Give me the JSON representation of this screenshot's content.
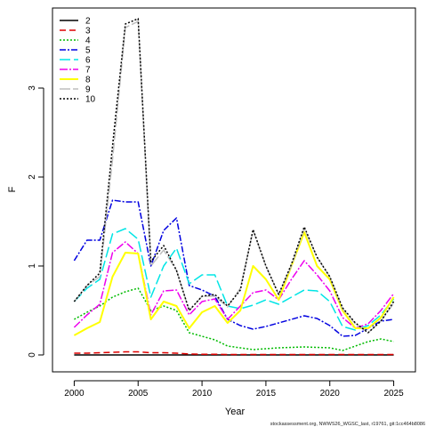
{
  "chart_data": {
    "type": "line",
    "title": "",
    "xlabel": "Year",
    "ylabel": "F",
    "xlim": [
      1998.3,
      2026.7
    ],
    "ylim": [
      -0.19,
      3.9
    ],
    "xticks": [
      2000,
      2005,
      2010,
      2015,
      2020,
      2025
    ],
    "yticks": [
      0,
      1,
      2,
      3
    ],
    "legend_position": "top-left",
    "footnote": "stockassessment.org, NWWS26_WGSC_last, r19761, git:1cc464b8086",
    "x": [
      2000,
      2001,
      2002,
      2003,
      2004,
      2005,
      2006,
      2007,
      2008,
      2009,
      2010,
      2011,
      2012,
      2013,
      2014,
      2015,
      2016,
      2017,
      2018,
      2019,
      2020,
      2021,
      2022,
      2023,
      2024,
      2025
    ],
    "series": [
      {
        "name": "2",
        "color": "#000000",
        "dash": "",
        "values": [
          0.0,
          0.0,
          0.0,
          0.0,
          0.0,
          0.0,
          0.0,
          0.0,
          0.0,
          0.0,
          0.0,
          0.0,
          0.0,
          0.0,
          0.0,
          0.0,
          0.0,
          0.0,
          0.0,
          0.0,
          0.0,
          0.0,
          0.0,
          0.0,
          0.0,
          0.0
        ]
      },
      {
        "name": "3",
        "color": "#df0000",
        "dash": "7,4",
        "values": [
          0.02,
          0.02,
          0.025,
          0.03,
          0.035,
          0.035,
          0.025,
          0.025,
          0.02,
          0.01,
          0.008,
          0.008,
          0.005,
          0.005,
          0.005,
          0.005,
          0.005,
          0.005,
          0.005,
          0.005,
          0.005,
          0.005,
          0.005,
          0.005,
          0.005,
          0.005
        ]
      },
      {
        "name": "4",
        "color": "#00bb00",
        "dash": "2,2",
        "values": [
          0.4,
          0.48,
          0.55,
          0.65,
          0.71,
          0.75,
          0.5,
          0.55,
          0.5,
          0.25,
          0.21,
          0.17,
          0.1,
          0.08,
          0.06,
          0.07,
          0.08,
          0.085,
          0.09,
          0.085,
          0.08,
          0.05,
          0.1,
          0.15,
          0.18,
          0.15
        ]
      },
      {
        "name": "5",
        "color": "#0000e0",
        "dash": "7,2,2,2",
        "values": [
          1.06,
          1.29,
          1.29,
          1.74,
          1.72,
          1.72,
          1.0,
          1.4,
          1.54,
          0.78,
          0.73,
          0.66,
          0.4,
          0.33,
          0.29,
          0.32,
          0.36,
          0.4,
          0.44,
          0.41,
          0.33,
          0.21,
          0.22,
          0.3,
          0.38,
          0.4
        ]
      },
      {
        "name": "6",
        "color": "#00e5e5",
        "dash": "12,4",
        "values": [
          0.6,
          0.75,
          0.85,
          1.36,
          1.42,
          1.3,
          0.65,
          1.0,
          1.2,
          0.8,
          0.9,
          0.9,
          0.55,
          0.52,
          0.56,
          0.62,
          0.57,
          0.65,
          0.73,
          0.72,
          0.6,
          0.32,
          0.28,
          0.33,
          0.45,
          0.63
        ]
      },
      {
        "name": "7",
        "color": "#ee00ee",
        "dash": "9,2,2,2",
        "values": [
          0.31,
          0.45,
          0.57,
          1.15,
          1.27,
          1.14,
          0.45,
          0.72,
          0.73,
          0.45,
          0.6,
          0.63,
          0.4,
          0.55,
          0.7,
          0.73,
          0.62,
          0.85,
          1.06,
          0.9,
          0.72,
          0.42,
          0.3,
          0.35,
          0.5,
          0.69
        ]
      },
      {
        "name": "8",
        "color": "#ffff00",
        "dash": "",
        "values": [
          0.22,
          0.3,
          0.37,
          0.88,
          1.15,
          1.14,
          0.4,
          0.6,
          0.55,
          0.3,
          0.48,
          0.55,
          0.36,
          0.5,
          1.0,
          0.85,
          0.62,
          1.0,
          1.38,
          1.0,
          0.85,
          0.5,
          0.3,
          0.3,
          0.42,
          0.65
        ]
      },
      {
        "name": "9",
        "color": "#bebebe",
        "dash": "12,3",
        "values": [
          0.6,
          0.78,
          0.88,
          2.2,
          3.68,
          3.75,
          1.0,
          1.18,
          0.95,
          0.5,
          0.66,
          0.66,
          0.54,
          0.75,
          1.4,
          1.0,
          0.68,
          1.0,
          1.42,
          1.1,
          0.88,
          0.52,
          0.35,
          0.25,
          0.38,
          0.58
        ]
      },
      {
        "name": "10",
        "color": "#000000",
        "dash": "2,2",
        "values": [
          0.6,
          0.78,
          0.92,
          2.35,
          3.72,
          3.78,
          1.05,
          1.23,
          0.95,
          0.5,
          0.66,
          0.68,
          0.55,
          0.73,
          1.41,
          1.0,
          0.68,
          1.02,
          1.44,
          1.1,
          0.88,
          0.53,
          0.36,
          0.25,
          0.38,
          0.6
        ]
      }
    ]
  }
}
